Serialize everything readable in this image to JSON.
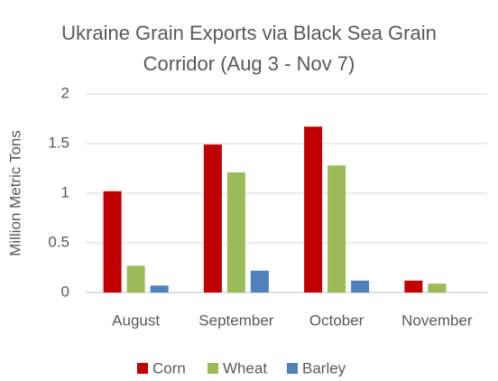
{
  "chart_data": {
    "type": "bar",
    "title": "Ukraine Grain Exports via Black Sea Grain Corridor (Aug 3 - Nov 7)",
    "y_label": "Million Metric Tons",
    "categories": [
      "August",
      "September",
      "October",
      "November"
    ],
    "series": [
      {
        "name": "Corn",
        "color": "#c00000",
        "values": [
          1.02,
          1.49,
          1.67,
          0.12
        ]
      },
      {
        "name": "Wheat",
        "color": "#9bbb59",
        "values": [
          0.27,
          1.21,
          1.28,
          0.09
        ]
      },
      {
        "name": "Barley",
        "color": "#4f81bd",
        "values": [
          0.07,
          0.22,
          0.12,
          0
        ]
      }
    ],
    "ylim": [
      0,
      2
    ],
    "yticks": [
      0,
      0.5,
      1,
      1.5,
      2
    ],
    "grid": true,
    "legend": "bottom"
  }
}
